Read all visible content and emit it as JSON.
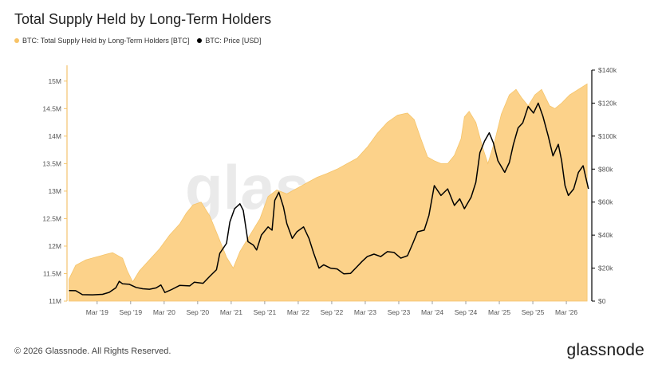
{
  "header": {
    "title": "Total Supply Held by Long-Term Holders"
  },
  "legend": [
    {
      "label": "BTC: Total Supply Held by Long-Term Holders [BTC]",
      "color": "#f7c367"
    },
    {
      "label": "BTC: Price [USD]",
      "color": "#000000"
    }
  ],
  "watermark": "glassnode",
  "footer": {
    "copyright": "© 2026 Glassnode. All Rights Reserved.",
    "brand": "glassnode"
  },
  "colors": {
    "area": "#fcd28a",
    "area_edge": "#f5c46a",
    "price": "#000000",
    "left_axis_line": "#f3c36d"
  },
  "chart_data": {
    "type": "area",
    "title": "Total Supply Held by Long-Term Holders",
    "x_ticks": [
      {
        "label": "Mar '19",
        "t": 2019.17
      },
      {
        "label": "Sep '19",
        "t": 2019.67
      },
      {
        "label": "Mar '20",
        "t": 2020.17
      },
      {
        "label": "Sep '20",
        "t": 2020.67
      },
      {
        "label": "Mar '21",
        "t": 2021.17
      },
      {
        "label": "Sep '21",
        "t": 2021.67
      },
      {
        "label": "Mar '22",
        "t": 2022.17
      },
      {
        "label": "Sep '22",
        "t": 2022.67
      },
      {
        "label": "Mar '23",
        "t": 2023.17
      },
      {
        "label": "Sep '23",
        "t": 2023.67
      },
      {
        "label": "Mar '24",
        "t": 2024.17
      },
      {
        "label": "Sep '24",
        "t": 2024.67
      },
      {
        "label": "Mar '25",
        "t": 2025.17
      },
      {
        "label": "Sep '25",
        "t": 2025.67
      },
      {
        "label": "Mar '26",
        "t": 2026.17
      }
    ],
    "xlim": [
      2018.72,
      2026.55
    ],
    "y_left": {
      "ylim": [
        11000000,
        15200000
      ],
      "ticks": [
        {
          "label": "11M",
          "v": 11000000
        },
        {
          "label": "11.5M",
          "v": 11500000
        },
        {
          "label": "12M",
          "v": 12000000
        },
        {
          "label": "12.5M",
          "v": 12500000
        },
        {
          "label": "13M",
          "v": 13000000
        },
        {
          "label": "13.5M",
          "v": 13500000
        },
        {
          "label": "14M",
          "v": 14000000
        },
        {
          "label": "14.5M",
          "v": 14500000
        },
        {
          "label": "15M",
          "v": 15000000
        }
      ]
    },
    "y_right": {
      "ylim": [
        0,
        140000
      ],
      "ticks": [
        {
          "label": "$0",
          "v": 0
        },
        {
          "label": "$20k",
          "v": 20000
        },
        {
          "label": "$40k",
          "v": 40000
        },
        {
          "label": "$60k",
          "v": 60000
        },
        {
          "label": "$80k",
          "v": 80000
        },
        {
          "label": "$100k",
          "v": 100000
        },
        {
          "label": "$120k",
          "v": 120000
        },
        {
          "label": "$140k",
          "v": 140000
        }
      ]
    },
    "series": [
      {
        "name": "BTC: Total Supply Held by Long-Term Holders [BTC]",
        "axis": "left",
        "kind": "area",
        "points": [
          [
            2018.75,
            11.4
          ],
          [
            2018.85,
            11.65
          ],
          [
            2019.0,
            11.75
          ],
          [
            2019.15,
            11.8
          ],
          [
            2019.3,
            11.85
          ],
          [
            2019.4,
            11.88
          ],
          [
            2019.55,
            11.78
          ],
          [
            2019.62,
            11.55
          ],
          [
            2019.7,
            11.35
          ],
          [
            2019.8,
            11.55
          ],
          [
            2019.95,
            11.75
          ],
          [
            2020.1,
            11.95
          ],
          [
            2020.25,
            12.2
          ],
          [
            2020.4,
            12.4
          ],
          [
            2020.5,
            12.6
          ],
          [
            2020.6,
            12.75
          ],
          [
            2020.72,
            12.8
          ],
          [
            2020.85,
            12.55
          ],
          [
            2020.95,
            12.25
          ],
          [
            2021.1,
            11.8
          ],
          [
            2021.2,
            11.6
          ],
          [
            2021.3,
            11.9
          ],
          [
            2021.45,
            12.2
          ],
          [
            2021.6,
            12.5
          ],
          [
            2021.72,
            12.9
          ],
          [
            2021.85,
            13.02
          ],
          [
            2022.0,
            12.95
          ],
          [
            2022.15,
            13.05
          ],
          [
            2022.3,
            13.15
          ],
          [
            2022.45,
            13.25
          ],
          [
            2022.6,
            13.32
          ],
          [
            2022.75,
            13.4
          ],
          [
            2022.9,
            13.5
          ],
          [
            2023.05,
            13.6
          ],
          [
            2023.2,
            13.8
          ],
          [
            2023.35,
            14.05
          ],
          [
            2023.5,
            14.25
          ],
          [
            2023.65,
            14.38
          ],
          [
            2023.8,
            14.42
          ],
          [
            2023.9,
            14.3
          ],
          [
            2024.0,
            13.95
          ],
          [
            2024.1,
            13.62
          ],
          [
            2024.2,
            13.55
          ],
          [
            2024.3,
            13.5
          ],
          [
            2024.4,
            13.5
          ],
          [
            2024.5,
            13.65
          ],
          [
            2024.6,
            13.95
          ],
          [
            2024.65,
            14.35
          ],
          [
            2024.72,
            14.45
          ],
          [
            2024.82,
            14.25
          ],
          [
            2024.92,
            13.8
          ],
          [
            2025.0,
            13.5
          ],
          [
            2025.1,
            13.9
          ],
          [
            2025.2,
            14.4
          ],
          [
            2025.32,
            14.75
          ],
          [
            2025.42,
            14.85
          ],
          [
            2025.5,
            14.7
          ],
          [
            2025.6,
            14.55
          ],
          [
            2025.7,
            14.75
          ],
          [
            2025.8,
            14.85
          ],
          [
            2025.92,
            14.55
          ],
          [
            2026.0,
            14.5
          ],
          [
            2026.1,
            14.6
          ],
          [
            2026.22,
            14.75
          ],
          [
            2026.35,
            14.85
          ],
          [
            2026.48,
            14.95
          ]
        ]
      },
      {
        "name": "BTC: Price [USD]",
        "axis": "right",
        "kind": "line",
        "points": [
          [
            2018.75,
            6400
          ],
          [
            2018.85,
            6300
          ],
          [
            2018.95,
            3900
          ],
          [
            2019.1,
            3800
          ],
          [
            2019.25,
            4100
          ],
          [
            2019.35,
            5300
          ],
          [
            2019.45,
            8100
          ],
          [
            2019.5,
            12000
          ],
          [
            2019.55,
            10500
          ],
          [
            2019.65,
            10200
          ],
          [
            2019.75,
            8300
          ],
          [
            2019.85,
            7500
          ],
          [
            2019.95,
            7200
          ],
          [
            2020.05,
            8000
          ],
          [
            2020.12,
            9800
          ],
          [
            2020.18,
            5200
          ],
          [
            2020.28,
            7000
          ],
          [
            2020.4,
            9500
          ],
          [
            2020.55,
            9200
          ],
          [
            2020.62,
            11500
          ],
          [
            2020.75,
            10800
          ],
          [
            2020.85,
            15000
          ],
          [
            2020.95,
            19000
          ],
          [
            2021.0,
            29000
          ],
          [
            2021.1,
            35000
          ],
          [
            2021.15,
            48000
          ],
          [
            2021.22,
            56000
          ],
          [
            2021.3,
            59000
          ],
          [
            2021.35,
            55000
          ],
          [
            2021.42,
            36000
          ],
          [
            2021.5,
            34000
          ],
          [
            2021.55,
            31000
          ],
          [
            2021.62,
            40000
          ],
          [
            2021.72,
            45000
          ],
          [
            2021.78,
            43000
          ],
          [
            2021.82,
            61000
          ],
          [
            2021.88,
            66000
          ],
          [
            2021.95,
            57000
          ],
          [
            2022.0,
            47000
          ],
          [
            2022.08,
            38000
          ],
          [
            2022.15,
            42000
          ],
          [
            2022.25,
            45000
          ],
          [
            2022.33,
            38000
          ],
          [
            2022.4,
            29000
          ],
          [
            2022.48,
            20000
          ],
          [
            2022.55,
            22000
          ],
          [
            2022.65,
            20000
          ],
          [
            2022.75,
            19500
          ],
          [
            2022.85,
            16500
          ],
          [
            2022.95,
            16800
          ],
          [
            2023.05,
            21000
          ],
          [
            2023.12,
            24000
          ],
          [
            2023.2,
            27000
          ],
          [
            2023.3,
            28500
          ],
          [
            2023.4,
            27000
          ],
          [
            2023.5,
            30000
          ],
          [
            2023.6,
            29500
          ],
          [
            2023.7,
            26000
          ],
          [
            2023.8,
            27500
          ],
          [
            2023.88,
            35000
          ],
          [
            2023.95,
            42000
          ],
          [
            2024.05,
            43000
          ],
          [
            2024.12,
            52000
          ],
          [
            2024.2,
            70000
          ],
          [
            2024.3,
            64000
          ],
          [
            2024.4,
            68000
          ],
          [
            2024.5,
            58000
          ],
          [
            2024.58,
            62000
          ],
          [
            2024.65,
            56000
          ],
          [
            2024.75,
            63000
          ],
          [
            2024.82,
            72000
          ],
          [
            2024.88,
            90000
          ],
          [
            2024.95,
            97000
          ],
          [
            2025.02,
            102000
          ],
          [
            2025.08,
            96000
          ],
          [
            2025.15,
            85000
          ],
          [
            2025.25,
            78000
          ],
          [
            2025.32,
            84000
          ],
          [
            2025.38,
            95000
          ],
          [
            2025.45,
            105000
          ],
          [
            2025.52,
            108000
          ],
          [
            2025.6,
            118000
          ],
          [
            2025.68,
            114000
          ],
          [
            2025.75,
            120000
          ],
          [
            2025.82,
            112000
          ],
          [
            2025.9,
            100000
          ],
          [
            2025.97,
            88000
          ],
          [
            2026.05,
            95000
          ],
          [
            2026.1,
            85000
          ],
          [
            2026.15,
            70000
          ],
          [
            2026.2,
            64000
          ],
          [
            2026.28,
            68000
          ],
          [
            2026.35,
            78000
          ],
          [
            2026.42,
            82000
          ],
          [
            2026.5,
            68000
          ]
        ]
      }
    ],
    "grid": false,
    "legend_position": "top-left"
  }
}
